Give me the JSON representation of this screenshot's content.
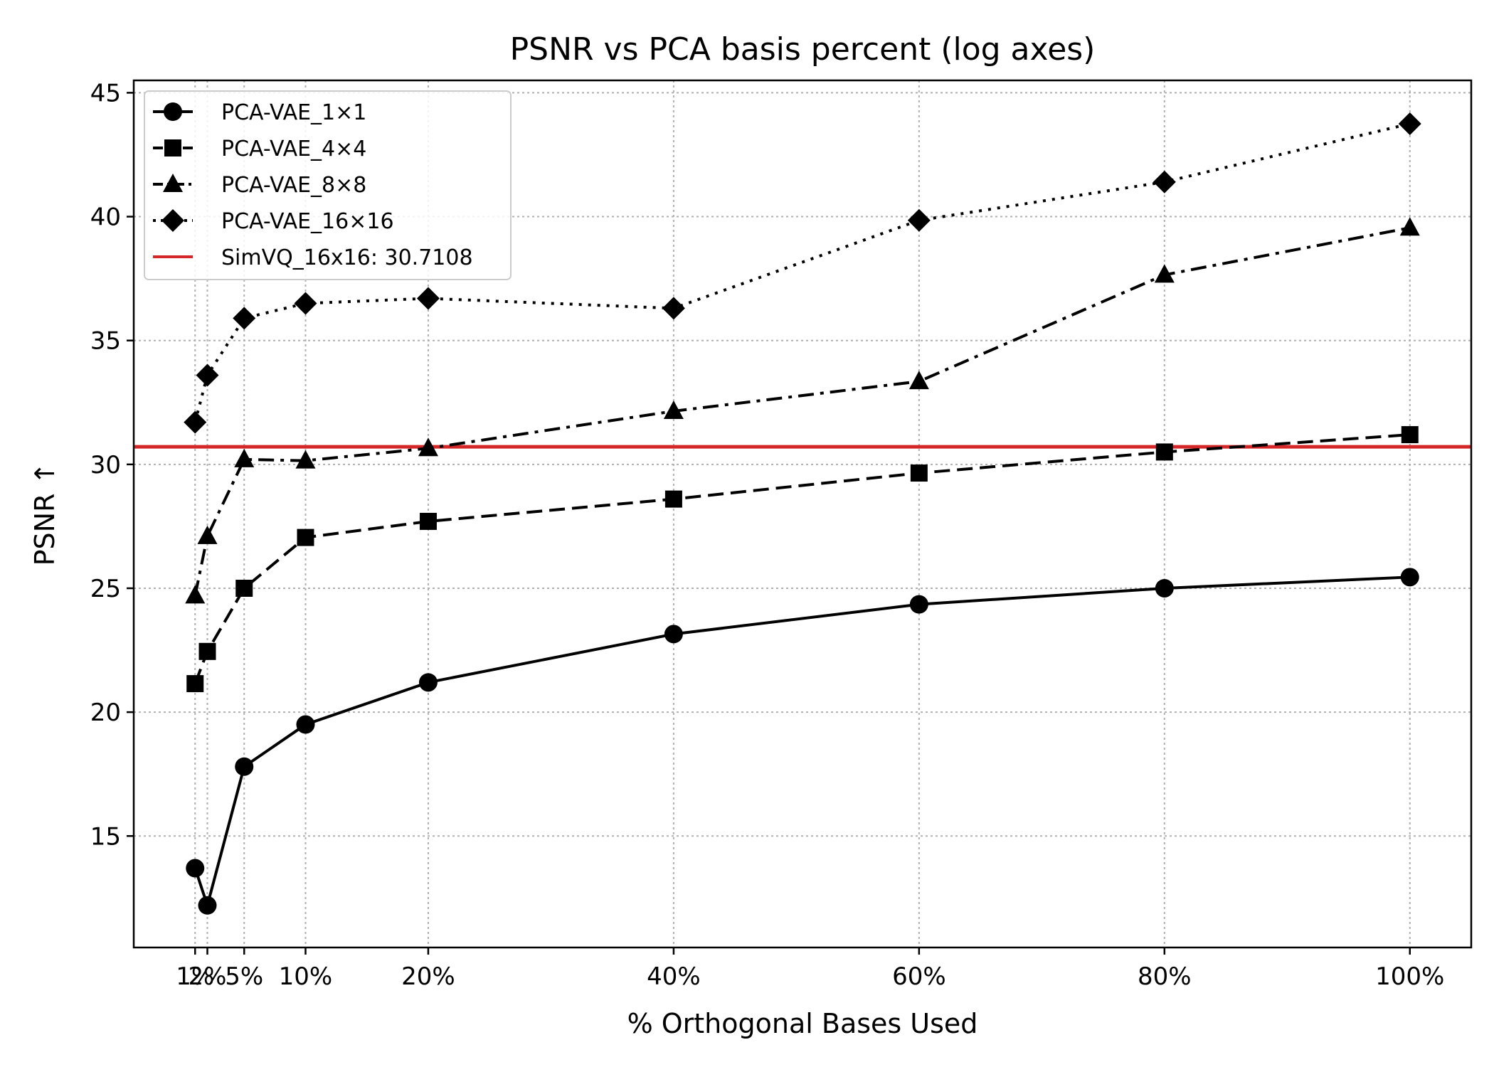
{
  "chart_data": {
    "type": "line",
    "title": "PSNR vs PCA basis percent (log axes)",
    "xlabel": "% Orthogonal Bases Used",
    "ylabel": "PSNR ↑",
    "x": [
      1,
      2,
      5,
      10,
      20,
      40,
      60,
      80,
      100
    ],
    "x_tick_labels": [
      "1%",
      "2%",
      "5%",
      "10%",
      "20%",
      "40%",
      "60%",
      "80%",
      "100%"
    ],
    "xlim": [
      -4,
      105
    ],
    "ylim": [
      10.5,
      45.5
    ],
    "y_ticks": [
      15,
      20,
      25,
      30,
      35,
      40,
      45
    ],
    "grid": true,
    "legend_position": "top-left",
    "series": [
      {
        "name": "PCA-VAE_1×1",
        "marker": "circle",
        "line_style": "solid",
        "color": "#000000",
        "values": [
          13.7,
          12.2,
          17.8,
          19.5,
          21.2,
          23.15,
          24.35,
          25.0,
          25.45
        ]
      },
      {
        "name": "PCA-VAE_4×4",
        "marker": "square",
        "line_style": "dashed",
        "color": "#000000",
        "values": [
          21.15,
          22.45,
          25.0,
          27.05,
          27.7,
          28.6,
          29.65,
          30.5,
          31.2
        ]
      },
      {
        "name": "PCA-VAE_8×8",
        "marker": "triangle",
        "line_style": "dashdot",
        "color": "#000000",
        "values": [
          24.7,
          27.1,
          30.2,
          30.15,
          30.65,
          32.15,
          33.35,
          37.65,
          39.55
        ]
      },
      {
        "name": "PCA-VAE_16×16",
        "marker": "diamond",
        "line_style": "dotted",
        "color": "#000000",
        "values": [
          31.7,
          33.6,
          35.9,
          36.5,
          36.7,
          36.3,
          39.85,
          41.4,
          43.75
        ]
      }
    ],
    "reference_line": {
      "name": "SimVQ_16x16: 30.7108",
      "value": 30.7108,
      "color": "#d62728"
    }
  }
}
